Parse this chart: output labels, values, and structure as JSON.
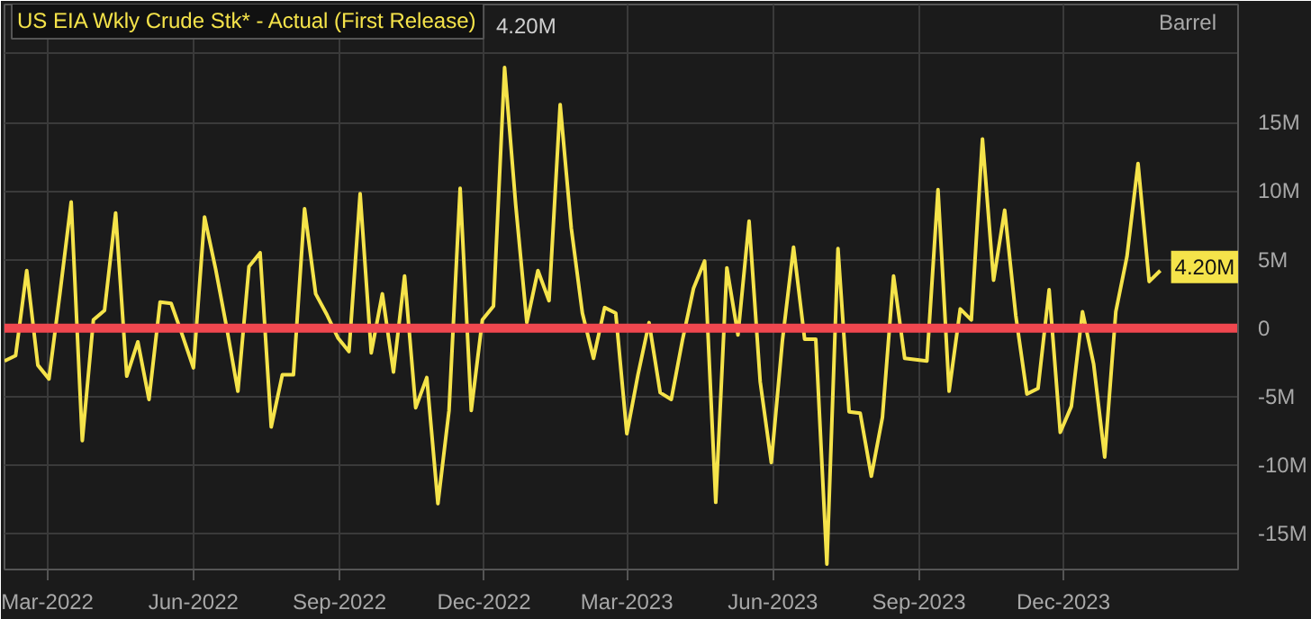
{
  "chart_data": {
    "type": "line",
    "ylabel": "Barrel",
    "x": [
      "2022-02-02",
      "2022-02-09",
      "2022-02-16",
      "2022-02-23",
      "2022-03-02",
      "2022-03-09",
      "2022-03-16",
      "2022-03-23",
      "2022-03-30",
      "2022-04-06",
      "2022-04-13",
      "2022-04-20",
      "2022-04-27",
      "2022-05-04",
      "2022-05-11",
      "2022-05-18",
      "2022-05-25",
      "2022-06-01",
      "2022-06-08",
      "2022-06-15",
      "2022-06-22",
      "2022-06-29",
      "2022-07-06",
      "2022-07-13",
      "2022-07-20",
      "2022-07-27",
      "2022-08-03",
      "2022-08-10",
      "2022-08-17",
      "2022-08-24",
      "2022-08-31",
      "2022-09-07",
      "2022-09-14",
      "2022-09-21",
      "2022-09-28",
      "2022-10-05",
      "2022-10-12",
      "2022-10-19",
      "2022-10-26",
      "2022-11-02",
      "2022-11-09",
      "2022-11-16",
      "2022-11-23",
      "2022-11-30",
      "2022-12-07",
      "2022-12-14",
      "2022-12-21",
      "2022-12-28",
      "2023-01-04",
      "2023-01-11",
      "2023-01-18",
      "2023-01-25",
      "2023-02-01",
      "2023-02-08",
      "2023-02-15",
      "2023-02-22",
      "2023-03-01",
      "2023-03-08",
      "2023-03-15",
      "2023-03-22",
      "2023-03-29",
      "2023-04-05",
      "2023-04-12",
      "2023-04-19",
      "2023-04-26",
      "2023-05-03",
      "2023-05-10",
      "2023-05-17",
      "2023-05-24",
      "2023-05-31",
      "2023-06-07",
      "2023-06-14",
      "2023-06-21",
      "2023-06-28",
      "2023-07-05",
      "2023-07-12",
      "2023-07-19",
      "2023-07-26",
      "2023-08-02",
      "2023-08-09",
      "2023-08-16",
      "2023-08-23",
      "2023-08-30",
      "2023-09-06",
      "2023-09-13",
      "2023-09-20",
      "2023-09-27",
      "2023-10-04",
      "2023-10-11",
      "2023-10-18",
      "2023-10-25",
      "2023-11-01",
      "2023-11-08",
      "2023-11-15",
      "2023-11-22",
      "2023-11-29",
      "2023-12-06",
      "2023-12-13",
      "2023-12-20",
      "2023-12-27",
      "2024-01-03",
      "2024-01-10",
      "2024-01-17",
      "2024-01-24",
      "2024-01-31"
    ],
    "series": [
      {
        "name": "US EIA Wkly Crude Stk* - Actual (First Release)",
        "color": "#f5e34a",
        "values": [
          -2.4,
          -2.0,
          4.2,
          -2.7,
          -3.7,
          2.6,
          9.2,
          -8.2,
          0.6,
          1.3,
          8.4,
          -3.5,
          -1.0,
          -5.2,
          1.9,
          1.8,
          -0.5,
          -2.9,
          8.1,
          4.3,
          0.0,
          -4.6,
          4.5,
          5.5,
          -7.2,
          -3.4,
          -3.4,
          8.7,
          2.5,
          1.0,
          -0.7,
          -1.7,
          9.8,
          -1.8,
          2.5,
          -3.2,
          3.8,
          -5.8,
          -3.6,
          -12.8,
          -6.0,
          10.2,
          -6.0,
          0.6,
          1.6,
          19.0,
          9.0,
          0.4,
          4.2,
          2.0,
          16.3,
          7.3,
          1.1,
          -2.2,
          1.5,
          1.1,
          -7.7,
          -3.4,
          0.4,
          -4.7,
          -5.2,
          -0.9,
          2.9,
          4.9,
          -12.7,
          4.4,
          -0.5,
          7.8,
          -3.9,
          -9.8,
          -0.9,
          5.9,
          -0.8,
          -0.8,
          -17.2,
          5.8,
          -6.1,
          -6.2,
          -10.8,
          -6.5,
          3.8,
          -2.2,
          -2.3,
          -2.4,
          10.1,
          -4.6,
          1.4,
          0.6,
          13.8,
          3.5,
          8.6,
          0.9,
          -4.8,
          -4.4,
          2.8,
          -7.6,
          -5.7,
          1.2,
          -2.6,
          -9.4,
          1.2,
          5.2,
          12.0,
          3.4,
          4.2
        ]
      }
    ],
    "xlim": [
      "2022-02-02",
      "2024-03-20"
    ],
    "xticks": [
      {
        "value": "2022-03-01",
        "label": "Mar-2022"
      },
      {
        "value": "2022-06-01",
        "label": "Jun-2022"
      },
      {
        "value": "2022-09-01",
        "label": "Sep-2022"
      },
      {
        "value": "2022-12-01",
        "label": "Dec-2022"
      },
      {
        "value": "2023-03-01",
        "label": "Mar-2023"
      },
      {
        "value": "2023-06-01",
        "label": "Jun-2023"
      },
      {
        "value": "2023-09-01",
        "label": "Sep-2023"
      },
      {
        "value": "2023-12-01",
        "label": "Dec-2023"
      }
    ],
    "ylim": [
      -17.6,
      23.6
    ],
    "yticks": [
      {
        "value": -15,
        "label": "-15M"
      },
      {
        "value": -10,
        "label": "-10M"
      },
      {
        "value": -5,
        "label": "-5M"
      },
      0,
      {
        "value": 5,
        "label": "5M"
      },
      {
        "value": 10,
        "label": "10M"
      },
      {
        "value": 15,
        "label": "15M"
      },
      {
        "value": 20,
        "label": null
      }
    ],
    "ref_lines": [
      {
        "axis": "y",
        "value": 0,
        "label": null,
        "color": "#f0474f"
      }
    ],
    "annotations": [
      "4.20M",
      {
        "text": "4.20M",
        "x": "2024-01-31",
        "y": 4.2
      }
    ],
    "grid": true,
    "marker": "none",
    "line_style": "solid"
  }
}
